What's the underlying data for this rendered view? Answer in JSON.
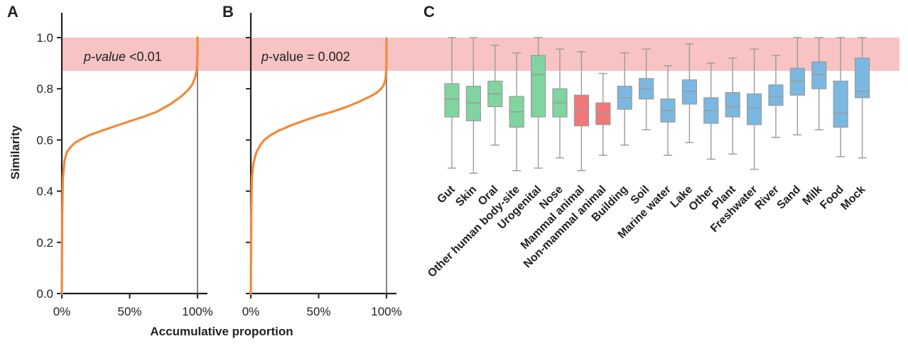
{
  "chart_data": [
    {
      "panel": "A",
      "type": "line",
      "ylabel": "Similarity",
      "xlabel": "Accumulative proportion",
      "xlim": [
        0,
        100
      ],
      "ylim": [
        0,
        1.0
      ],
      "x_ticks": [
        "0%",
        "50%",
        "100%"
      ],
      "y_ticks": [
        "0.0",
        "0.2",
        "0.4",
        "0.6",
        "0.8",
        "1.0"
      ],
      "highlight_band": [
        0.87,
        1.0
      ],
      "annotation": {
        "italic": "p-value",
        "rest": " <0.01"
      },
      "series": [
        {
          "x": [
            0,
            0.3,
            0.8,
            2,
            4,
            7,
            10,
            15,
            20,
            30,
            40,
            50,
            60,
            70,
            80,
            88,
            93,
            96,
            98,
            99.3,
            99.8,
            100,
            100,
            100
          ],
          "y": [
            0.0,
            0.3,
            0.45,
            0.52,
            0.555,
            0.575,
            0.59,
            0.605,
            0.618,
            0.637,
            0.655,
            0.673,
            0.69,
            0.71,
            0.74,
            0.77,
            0.795,
            0.815,
            0.84,
            0.87,
            0.9,
            0.94,
            0.97,
            1.0
          ]
        }
      ]
    },
    {
      "panel": "B",
      "type": "line",
      "xlim": [
        0,
        100
      ],
      "ylim": [
        0,
        1.0
      ],
      "x_ticks": [
        "0%",
        "50%",
        "100%"
      ],
      "highlight_band": [
        0.87,
        1.0
      ],
      "annotation": {
        "italic": "p",
        "rest": "-value = 0.002"
      },
      "series": [
        {
          "x": [
            0,
            0.3,
            0.8,
            2,
            4,
            7,
            10,
            15,
            20,
            30,
            40,
            50,
            60,
            70,
            80,
            88,
            93,
            96,
            98,
            99.3,
            99.8,
            100,
            100,
            100
          ],
          "y": [
            0.0,
            0.3,
            0.45,
            0.51,
            0.55,
            0.58,
            0.6,
            0.62,
            0.635,
            0.658,
            0.677,
            0.695,
            0.71,
            0.728,
            0.75,
            0.77,
            0.785,
            0.8,
            0.815,
            0.84,
            0.87,
            0.91,
            0.95,
            0.99
          ]
        }
      ]
    },
    {
      "panel": "C",
      "type": "box",
      "ylim": [
        0,
        1.0
      ],
      "highlight_band": [
        0.87,
        1.0
      ],
      "categories": [
        "Gut",
        "Skin",
        "Oral",
        "Other human body-site",
        "Urogenital",
        "Nose",
        "Mammal animal",
        "Non-mammal animal",
        "Building",
        "Soil",
        "Marine water",
        "Lake",
        "Other",
        "Plant",
        "Freshwater",
        "River",
        "Sand",
        "Milk",
        "Food",
        "Mock"
      ],
      "groups": [
        "human",
        "human",
        "human",
        "human",
        "human",
        "human",
        "animal",
        "animal",
        "environment",
        "environment",
        "environment",
        "environment",
        "environment",
        "environment",
        "environment",
        "environment",
        "environment",
        "environment",
        "environment",
        "environment"
      ],
      "group_colors": {
        "human": "#80d4a0",
        "animal": "#f07878",
        "environment": "#7ab8e2"
      },
      "boxes": [
        {
          "min": 0.49,
          "q1": 0.69,
          "median": 0.76,
          "q3": 0.82,
          "max": 1.0
        },
        {
          "min": 0.47,
          "q1": 0.675,
          "median": 0.745,
          "q3": 0.81,
          "max": 1.0
        },
        {
          "min": 0.58,
          "q1": 0.73,
          "median": 0.78,
          "q3": 0.83,
          "max": 0.97
        },
        {
          "min": 0.48,
          "q1": 0.65,
          "median": 0.71,
          "q3": 0.77,
          "max": 0.94
        },
        {
          "min": 0.49,
          "q1": 0.69,
          "median": 0.855,
          "q3": 0.93,
          "max": 1.0
        },
        {
          "min": 0.53,
          "q1": 0.69,
          "median": 0.745,
          "q3": 0.8,
          "max": 0.955
        },
        {
          "min": 0.48,
          "q1": 0.655,
          "median": 0.715,
          "q3": 0.775,
          "max": 0.945
        },
        {
          "min": 0.54,
          "q1": 0.66,
          "median": 0.705,
          "q3": 0.745,
          "max": 0.86
        },
        {
          "min": 0.58,
          "q1": 0.72,
          "median": 0.765,
          "q3": 0.81,
          "max": 0.94
        },
        {
          "min": 0.64,
          "q1": 0.76,
          "median": 0.8,
          "q3": 0.84,
          "max": 0.955
        },
        {
          "min": 0.54,
          "q1": 0.67,
          "median": 0.715,
          "q3": 0.76,
          "max": 0.89
        },
        {
          "min": 0.59,
          "q1": 0.74,
          "median": 0.79,
          "q3": 0.835,
          "max": 0.975
        },
        {
          "min": 0.525,
          "q1": 0.665,
          "median": 0.715,
          "q3": 0.765,
          "max": 0.9
        },
        {
          "min": 0.545,
          "q1": 0.69,
          "median": 0.73,
          "q3": 0.785,
          "max": 0.92
        },
        {
          "min": 0.485,
          "q1": 0.66,
          "median": 0.725,
          "q3": 0.78,
          "max": 0.955
        },
        {
          "min": 0.61,
          "q1": 0.735,
          "median": 0.77,
          "q3": 0.815,
          "max": 0.93
        },
        {
          "min": 0.62,
          "q1": 0.775,
          "median": 0.83,
          "q3": 0.88,
          "max": 1.0
        },
        {
          "min": 0.64,
          "q1": 0.8,
          "median": 0.855,
          "q3": 0.905,
          "max": 1.0
        },
        {
          "min": 0.535,
          "q1": 0.65,
          "median": 0.705,
          "q3": 0.83,
          "max": 1.0
        },
        {
          "min": 0.53,
          "q1": 0.765,
          "median": 0.79,
          "q3": 0.92,
          "max": 1.0
        }
      ]
    }
  ],
  "colors": {
    "curve": "#f08a3a",
    "band": "#f7b8b8",
    "whisker": "#9a9a9a",
    "axis": "#222222",
    "vline": "#777777"
  }
}
